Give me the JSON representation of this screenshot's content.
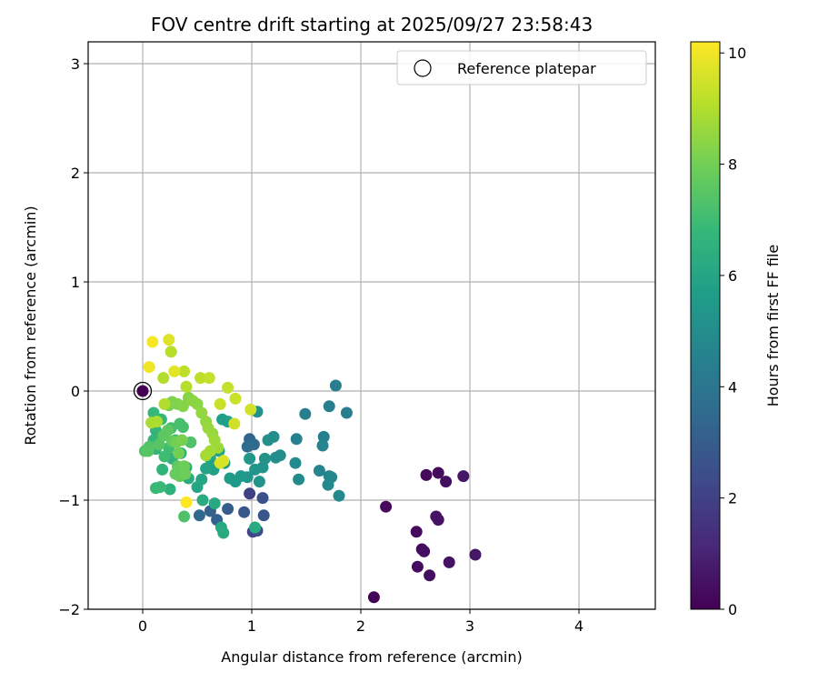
{
  "chart_data": {
    "type": "scatter",
    "title": "FOV centre drift starting at 2025/09/27 23:58:43",
    "xlabel": "Angular distance from reference (arcmin)",
    "ylabel": "Rotation from reference (arcmin)",
    "xlim": [
      -0.5,
      4.7
    ],
    "ylim": [
      -2.0,
      3.2
    ],
    "xticks": [
      0,
      1,
      2,
      3,
      4
    ],
    "yticks": [
      -2,
      -1,
      0,
      1,
      2,
      3
    ],
    "xtick_labels": [
      "0",
      "1",
      "2",
      "3",
      "4"
    ],
    "ytick_labels": [
      "−2",
      "−1",
      "0",
      "1",
      "2",
      "3"
    ],
    "grid": true,
    "legend": {
      "position": "top-right",
      "label": "Reference platepar"
    },
    "reference_point": {
      "x": 0.0,
      "y": 0.0
    },
    "colorbar": {
      "label": "Hours from first FF file",
      "range": [
        0,
        10.2
      ],
      "ticks": [
        0,
        2,
        4,
        6,
        8,
        10
      ],
      "tick_labels": [
        "0",
        "2",
        "4",
        "6",
        "8",
        "10"
      ],
      "colormap": [
        "#440154",
        "#482878",
        "#3e4989",
        "#31688e",
        "#26828e",
        "#1f9e89",
        "#35b779",
        "#6ece58",
        "#b5de2b",
        "#fde725"
      ]
    },
    "points": [
      [
        2.12,
        -1.89,
        0.1
      ],
      [
        2.23,
        -1.06,
        0.2
      ],
      [
        2.51,
        -1.29,
        0.2
      ],
      [
        2.52,
        -1.61,
        0.3
      ],
      [
        2.56,
        -1.45,
        0.3
      ],
      [
        2.58,
        -1.47,
        0.4
      ],
      [
        2.6,
        -0.77,
        0.2
      ],
      [
        2.63,
        -1.69,
        0.4
      ],
      [
        2.69,
        -1.15,
        0.5
      ],
      [
        2.71,
        -1.18,
        0.5
      ],
      [
        2.71,
        -0.75,
        0.3
      ],
      [
        2.78,
        -0.83,
        0.4
      ],
      [
        2.81,
        -1.57,
        0.5
      ],
      [
        2.94,
        -0.78,
        0.6
      ],
      [
        3.05,
        -1.5,
        0.6
      ],
      [
        0.98,
        -0.94,
        2.0
      ],
      [
        1.01,
        -1.29,
        2.2
      ],
      [
        1.05,
        -1.28,
        2.4
      ],
      [
        1.1,
        -0.98,
        2.5
      ],
      [
        1.11,
        -1.14,
        2.7
      ],
      [
        0.93,
        -1.11,
        2.8
      ],
      [
        0.78,
        -1.08,
        3.0
      ],
      [
        0.68,
        -1.18,
        3.1
      ],
      [
        0.62,
        -1.1,
        3.2
      ],
      [
        0.52,
        -1.14,
        3.4
      ],
      [
        0.98,
        -0.44,
        3.3
      ],
      [
        1.02,
        -0.49,
        3.5
      ],
      [
        0.96,
        -0.51,
        3.6
      ],
      [
        1.77,
        0.05,
        4.3
      ],
      [
        1.71,
        -0.14,
        4.4
      ],
      [
        1.87,
        -0.2,
        4.3
      ],
      [
        1.49,
        -0.21,
        4.4
      ],
      [
        1.41,
        -0.44,
        4.5
      ],
      [
        1.66,
        -0.42,
        4.5
      ],
      [
        1.65,
        -0.5,
        4.6
      ],
      [
        1.62,
        -0.73,
        4.6
      ],
      [
        1.71,
        -0.78,
        4.7
      ],
      [
        1.73,
        -0.79,
        4.7
      ],
      [
        1.7,
        -0.86,
        4.8
      ],
      [
        1.8,
        -0.96,
        4.8
      ],
      [
        1.4,
        -0.66,
        4.9
      ],
      [
        1.43,
        -0.81,
        4.9
      ],
      [
        1.26,
        -0.59,
        5.0
      ],
      [
        1.22,
        -0.61,
        5.0
      ],
      [
        1.2,
        -0.42,
        5.0
      ],
      [
        1.05,
        -0.19,
        5.1
      ],
      [
        1.15,
        -0.45,
        5.1
      ],
      [
        1.12,
        -0.62,
        5.2
      ],
      [
        1.1,
        -0.7,
        5.2
      ],
      [
        1.07,
        -0.83,
        5.3
      ],
      [
        1.03,
        -0.72,
        5.3
      ],
      [
        0.98,
        -0.62,
        5.4
      ],
      [
        0.96,
        -0.79,
        5.4
      ],
      [
        0.9,
        -0.78,
        5.5
      ],
      [
        0.85,
        -0.83,
        5.5
      ],
      [
        0.8,
        -0.8,
        5.6
      ],
      [
        0.75,
        -0.66,
        5.6
      ],
      [
        0.73,
        -0.26,
        5.7
      ],
      [
        0.78,
        -0.28,
        5.7
      ],
      [
        0.7,
        -0.55,
        5.8
      ],
      [
        0.65,
        -0.72,
        5.8
      ],
      [
        0.62,
        -0.62,
        5.9
      ],
      [
        0.58,
        -0.71,
        5.9
      ],
      [
        0.54,
        -0.81,
        6.0
      ],
      [
        0.5,
        -0.88,
        6.0
      ],
      [
        0.66,
        -1.03,
        6.1
      ],
      [
        0.72,
        -1.25,
        6.1
      ],
      [
        0.74,
        -1.3,
        6.2
      ],
      [
        1.03,
        -1.25,
        6.2
      ],
      [
        0.55,
        -1.0,
        6.3
      ],
      [
        0.42,
        -0.8,
        6.3
      ],
      [
        0.4,
        -0.7,
        6.4
      ],
      [
        0.35,
        -0.57,
        6.4
      ],
      [
        0.27,
        -0.62,
        6.5
      ],
      [
        0.25,
        -0.9,
        6.5
      ],
      [
        0.18,
        -0.72,
        6.6
      ],
      [
        0.12,
        -0.53,
        6.6
      ],
      [
        0.1,
        -0.45,
        6.7
      ],
      [
        0.12,
        -0.36,
        6.7
      ],
      [
        0.17,
        -0.26,
        6.8
      ],
      [
        0.1,
        -0.2,
        6.8
      ],
      [
        0.16,
        -0.88,
        6.9
      ],
      [
        0.12,
        -0.89,
        6.9
      ],
      [
        0.2,
        -0.6,
        7.0
      ],
      [
        0.24,
        -0.52,
        7.0
      ],
      [
        0.3,
        -0.45,
        7.1
      ],
      [
        0.26,
        -0.34,
        7.1
      ],
      [
        0.34,
        -0.3,
        7.2
      ],
      [
        0.37,
        -0.33,
        7.2
      ],
      [
        0.44,
        -0.47,
        7.3
      ],
      [
        0.38,
        -1.15,
        7.3
      ],
      [
        0.02,
        -0.55,
        7.4
      ],
      [
        0.06,
        -0.51,
        7.4
      ],
      [
        0.05,
        -0.55,
        7.5
      ],
      [
        0.15,
        -0.49,
        7.5
      ],
      [
        0.19,
        -0.41,
        7.6
      ],
      [
        0.23,
        -0.36,
        7.6
      ],
      [
        0.27,
        -0.46,
        7.7
      ],
      [
        0.32,
        -0.69,
        7.7
      ],
      [
        0.34,
        -0.78,
        7.8
      ],
      [
        0.3,
        -0.76,
        7.8
      ],
      [
        0.39,
        -0.76,
        7.9
      ],
      [
        0.38,
        -0.69,
        7.9
      ],
      [
        0.33,
        -0.57,
        8.0
      ],
      [
        0.31,
        -0.47,
        8.0
      ],
      [
        0.36,
        -0.45,
        8.1
      ],
      [
        0.24,
        -0.13,
        8.1
      ],
      [
        0.27,
        -0.1,
        8.2
      ],
      [
        0.32,
        -0.12,
        8.2
      ],
      [
        0.37,
        -0.14,
        8.3
      ],
      [
        0.42,
        -0.06,
        8.3
      ],
      [
        0.46,
        -0.09,
        8.4
      ],
      [
        0.5,
        -0.12,
        8.4
      ],
      [
        0.54,
        -0.2,
        8.5
      ],
      [
        0.58,
        -0.28,
        8.5
      ],
      [
        0.6,
        -0.34,
        8.6
      ],
      [
        0.64,
        -0.39,
        8.6
      ],
      [
        0.66,
        -0.45,
        8.7
      ],
      [
        0.69,
        -0.52,
        8.7
      ],
      [
        0.62,
        -0.55,
        8.8
      ],
      [
        0.58,
        -0.59,
        8.8
      ],
      [
        0.08,
        -0.29,
        8.9
      ],
      [
        0.13,
        -0.28,
        8.9
      ],
      [
        0.2,
        -0.12,
        9.0
      ],
      [
        0.19,
        0.12,
        9.0
      ],
      [
        0.26,
        0.36,
        9.1
      ],
      [
        0.4,
        0.04,
        9.1
      ],
      [
        0.38,
        0.18,
        9.2
      ],
      [
        0.53,
        0.12,
        9.2
      ],
      [
        0.61,
        0.12,
        9.3
      ],
      [
        0.78,
        0.03,
        9.3
      ],
      [
        0.71,
        -0.12,
        9.4
      ],
      [
        0.85,
        -0.07,
        9.4
      ],
      [
        0.84,
        -0.3,
        9.5
      ],
      [
        0.99,
        -0.17,
        9.5
      ],
      [
        0.74,
        -0.64,
        9.6
      ],
      [
        0.71,
        -0.66,
        9.6
      ],
      [
        0.24,
        0.47,
        9.7
      ],
      [
        0.29,
        0.18,
        9.8
      ],
      [
        0.06,
        0.22,
        10.0
      ],
      [
        0.09,
        0.45,
        10.1
      ],
      [
        0.4,
        -1.02,
        10.2
      ]
    ]
  }
}
